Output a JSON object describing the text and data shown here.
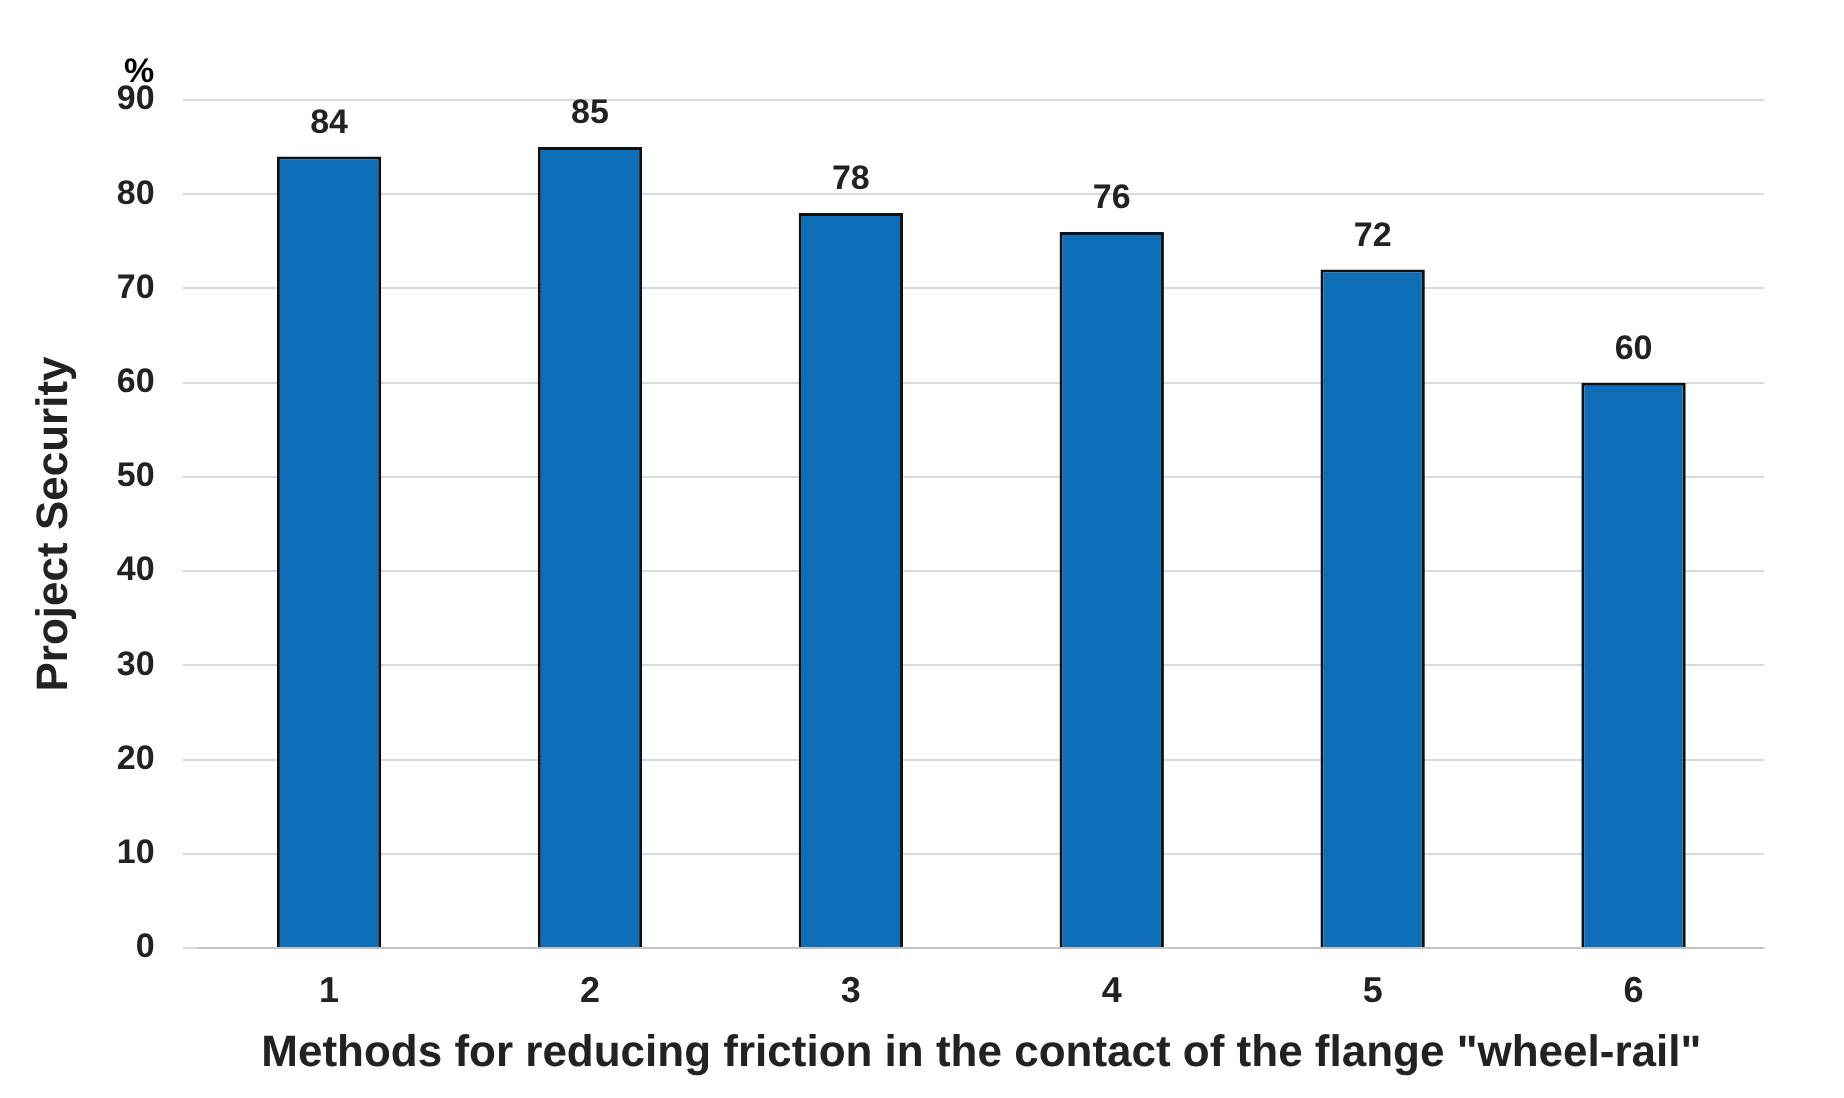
{
  "chart_data": {
    "type": "bar",
    "xlabel": "Methods for reducing friction in the contact of the flange \"wheel-rail\"",
    "ylabel": "Project Security",
    "annotations": [
      "%"
    ],
    "categories": [
      "1",
      "2",
      "3",
      "4",
      "5",
      "6"
    ],
    "values": [
      84,
      85,
      78,
      76,
      72,
      60
    ],
    "color": "#0e6eb8",
    "ylim": [
      0,
      90
    ],
    "yticks": [
      0,
      10,
      20,
      30,
      40,
      50,
      60,
      70,
      80,
      90
    ],
    "grid": "y",
    "data_labels": true,
    "legend": false
  }
}
